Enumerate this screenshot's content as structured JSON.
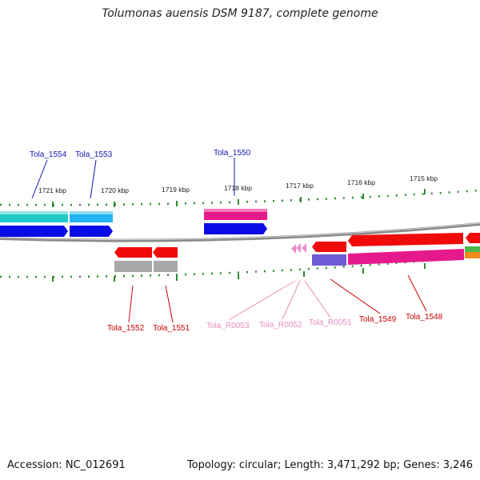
{
  "title": "Tolumonas auensis DSM 9187, complete genome",
  "footer": {
    "accession": "Accession: NC_012691",
    "summary": "Topology: circular; Length: 3,471,292 bp; Genes: 3,246"
  },
  "scale": {
    "ticks": [
      "1721 kbp",
      "1720 kbp",
      "1719 kbp",
      "1718 kbp",
      "1717 kbp",
      "1716 kbp",
      "1715 kbp"
    ]
  },
  "labels": {
    "top": [
      {
        "text": "Tola_1554"
      },
      {
        "text": "Tola_1553"
      },
      {
        "text": "Tola_1550"
      }
    ],
    "bottom": [
      {
        "text": "Tola_1552"
      },
      {
        "text": "Tola_1551"
      },
      {
        "text": "Tola_R0053"
      },
      {
        "text": "Tola_R0052"
      },
      {
        "text": "Tola_R0051"
      },
      {
        "text": "Tola_1549"
      },
      {
        "text": "Tola_1548"
      }
    ]
  },
  "colors": {
    "top_label": "#1414b4",
    "bottom_label": "#c80000",
    "rna_label": "#e68cbe",
    "tick": "#2e8b2e",
    "backbone": "#8a8a8a",
    "cyan": "#20c8c8",
    "sky": "#20b4f0",
    "blue": "#0a0ae6",
    "magenta": "#e6198c",
    "red": "#f00a0a",
    "gray": "#a8a8a8",
    "pink": "#f08cc8",
    "purple": "#6e5ad2"
  }
}
